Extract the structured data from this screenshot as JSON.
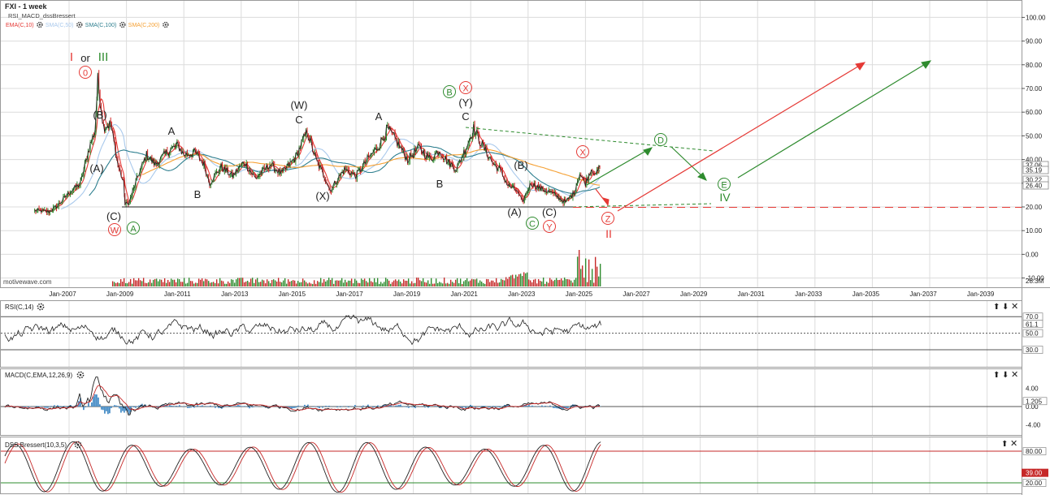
{
  "header": {
    "title": "FXI - 1 week",
    "study": "RSI_MACD_dssBressert",
    "overlays": [
      {
        "label": "EMA(C,10)",
        "color": "#e53935"
      },
      {
        "label": "SMA(C,50)",
        "color": "#a9c9ec"
      },
      {
        "label": "SMA(C,100)",
        "color": "#2e7f8f"
      },
      {
        "label": "SMA(C,200)",
        "color": "#f5a033"
      }
    ]
  },
  "watermark": "motivewave.com",
  "colors": {
    "grid": "#dcdcdc",
    "price_line": "#222222",
    "bull": "#2e8b2e",
    "bear": "#d32222",
    "wave_red": "#e53935",
    "wave_green": "#2e8b2e",
    "volume_green": "#2e8b2e",
    "volume_red": "#c62828",
    "macd_hist": "#4a8fc7",
    "dss_fill_red": "#c07070",
    "dss_fill_green": "#7fb37f"
  },
  "chart_data": [
    {
      "type": "line",
      "panel": "price",
      "title": "FXI - 1 week",
      "x_ticks": [
        "Jan-2007",
        "Jan-2009",
        "Jan-2011",
        "Jan-2013",
        "Jan-2015",
        "Jan-2017",
        "Jan-2019",
        "Jan-2021",
        "Jan-2023",
        "Jan-2025",
        "Jan-2027",
        "Jan-2029",
        "Jan-2031",
        "Jan-2033",
        "Jan-2035",
        "Jan-2037",
        "Jan-2039"
      ],
      "y_ticks": [
        "100.00",
        "90.00",
        "80.00",
        "70.00",
        "60.00",
        "50.00",
        "40.00",
        "30.00",
        "20.00",
        "10.00",
        "0.00",
        "-10.00"
      ],
      "ylim": [
        -10,
        105
      ],
      "price_path": [
        [
          2005.8,
          18.5
        ],
        [
          2006.3,
          18
        ],
        [
          2006.6,
          20.5
        ],
        [
          2007.0,
          26
        ],
        [
          2007.4,
          30
        ],
        [
          2007.7,
          45
        ],
        [
          2007.9,
          52
        ],
        [
          2008.0,
          73.5
        ],
        [
          2008.2,
          54
        ],
        [
          2008.45,
          55
        ],
        [
          2008.7,
          38
        ],
        [
          2008.9,
          30
        ],
        [
          2008.95,
          21
        ],
        [
          2009.1,
          22
        ],
        [
          2009.4,
          33
        ],
        [
          2009.7,
          42
        ],
        [
          2010.0,
          38
        ],
        [
          2010.5,
          44
        ],
        [
          2010.8,
          46
        ],
        [
          2011.0,
          42
        ],
        [
          2011.4,
          43
        ],
        [
          2011.7,
          38
        ],
        [
          2011.9,
          30
        ],
        [
          2012.3,
          37
        ],
        [
          2012.7,
          33
        ],
        [
          2013.1,
          39
        ],
        [
          2013.5,
          32
        ],
        [
          2014.0,
          38
        ],
        [
          2014.4,
          34
        ],
        [
          2014.9,
          41
        ],
        [
          2015.3,
          52
        ],
        [
          2015.6,
          40
        ],
        [
          2015.9,
          33
        ],
        [
          2016.1,
          27
        ],
        [
          2016.6,
          36
        ],
        [
          2017.0,
          33
        ],
        [
          2017.4,
          40
        ],
        [
          2017.8,
          46
        ],
        [
          2018.1,
          53
        ],
        [
          2018.4,
          48
        ],
        [
          2018.8,
          40
        ],
        [
          2019.2,
          45
        ],
        [
          2019.6,
          40
        ],
        [
          2019.9,
          44
        ],
        [
          2020.2,
          39
        ],
        [
          2020.5,
          36
        ],
        [
          2020.8,
          44
        ],
        [
          2021.1,
          53
        ],
        [
          2021.4,
          46
        ],
        [
          2021.8,
          38
        ],
        [
          2022.0,
          36
        ],
        [
          2022.3,
          29
        ],
        [
          2022.6,
          27
        ],
        [
          2022.8,
          22
        ],
        [
          2023.1,
          30
        ],
        [
          2023.4,
          28
        ],
        [
          2023.8,
          26
        ],
        [
          2024.0,
          24.5
        ],
        [
          2024.3,
          22
        ],
        [
          2024.6,
          26
        ],
        [
          2024.8,
          34
        ],
        [
          2025.0,
          30
        ],
        [
          2025.2,
          36
        ],
        [
          2025.4,
          34
        ],
        [
          2025.5,
          37.06
        ]
      ],
      "last_values": [
        "37.06",
        "35.19",
        "30.22",
        "26.40",
        "20.00"
      ],
      "volume_last": "28.3M"
    },
    {
      "type": "line",
      "panel": "rsi",
      "title": "RSI(C,14)",
      "levels": [
        "70.0",
        "50.0",
        "30.0"
      ],
      "last_value": "61.1",
      "ylim": [
        20,
        85
      ]
    },
    {
      "type": "line",
      "panel": "macd",
      "title": "MACD(C,EMA,12,26,9)",
      "y_ticks": [
        "4.00",
        "0.00",
        "-4.00"
      ],
      "last_value": "1.205",
      "ylim": [
        -6,
        8
      ]
    },
    {
      "type": "line",
      "panel": "dss",
      "title": "DSS Bressert(10,3,5)",
      "levels": [
        "80.00",
        "20.00"
      ],
      "last_value": "39.00",
      "ylim": [
        0,
        100
      ]
    }
  ],
  "waves": {
    "wave_I": "I",
    "or": "or",
    "wave_III": "III",
    "circ_0": "0",
    "B_paren": "(B)",
    "A_paren": "(A)",
    "C_paren": "(C)",
    "circ_W": "W",
    "circ_A": "A",
    "A1": "A",
    "B1": "B",
    "W_paren": "(W)",
    "C1": "C",
    "X_paren": "(X)",
    "A2": "A",
    "B2": "B",
    "circ_B": "B",
    "circ_X_top": "X",
    "Y_paren": "(Y)",
    "C2": "C",
    "B_paren2": "(B)",
    "A_paren2": "(A)",
    "C_paren2": "(C)",
    "circ_C": "C",
    "circ_Y": "Y",
    "circ_X_2025": "X",
    "circ_Z": "Z",
    "wave_II": "II",
    "circ_D": "D",
    "circ_E": "E",
    "wave_IV": "IV"
  }
}
